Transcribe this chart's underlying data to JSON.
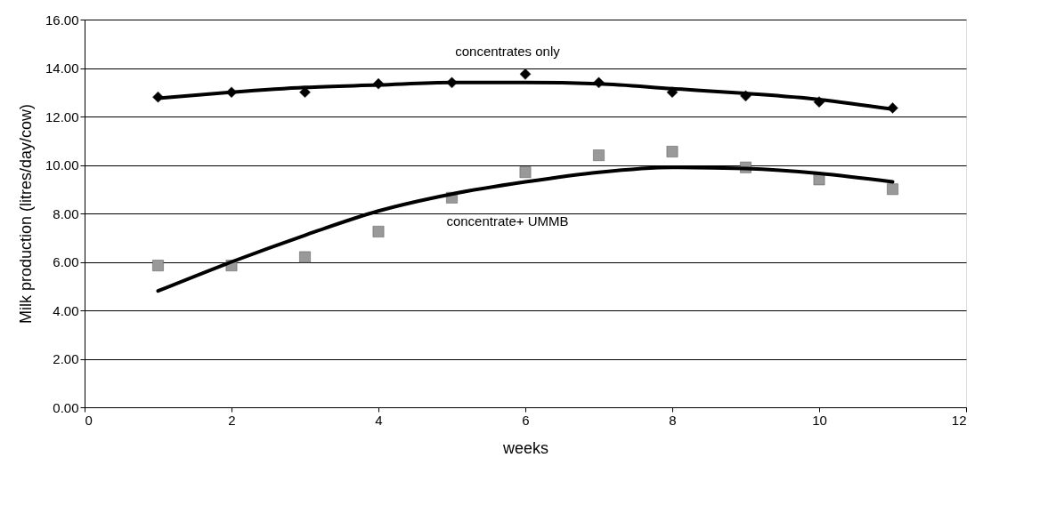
{
  "chart_data": {
    "type": "scatter",
    "xlabel": "weeks",
    "ylabel": "Milk production (litres/day/cow)",
    "xlim": [
      0,
      12
    ],
    "xticks": [
      0,
      2,
      4,
      6,
      8,
      10,
      12
    ],
    "line_style": "solid",
    "ylim": [
      0,
      16
    ],
    "yticks": [
      {
        "value": 0,
        "label": "0.00"
      },
      {
        "value": 2,
        "label": "2.00"
      },
      {
        "value": 4,
        "label": "4.00"
      },
      {
        "value": 6,
        "label": "6.00"
      },
      {
        "value": 8,
        "label": "8.00"
      },
      {
        "value": 10,
        "label": "10.00"
      },
      {
        "value": 12,
        "label": "12.00"
      },
      {
        "value": 14,
        "label": "14.00"
      },
      {
        "value": 16,
        "label": "16.00"
      }
    ],
    "grid": "y",
    "series": [
      {
        "name": "concentrates only",
        "marker": "diamond",
        "color": "#000000",
        "x": [
          1,
          2,
          3,
          4,
          5,
          6,
          7,
          8,
          9,
          10,
          11
        ],
        "values": [
          12.8,
          13.0,
          13.0,
          13.35,
          13.4,
          13.75,
          13.4,
          13.0,
          12.85,
          12.6,
          12.35
        ]
      },
      {
        "name": "concentrate+ UMMB",
        "marker": "square",
        "color": "#999999",
        "x": [
          1,
          2,
          3,
          4,
          5,
          6,
          7,
          8,
          9,
          10,
          11
        ],
        "values": [
          5.85,
          5.85,
          6.2,
          7.25,
          8.65,
          9.7,
          10.4,
          10.55,
          9.9,
          9.4,
          9.0
        ]
      },
      {
        "type": "line",
        "marker": "none",
        "color": "#000000",
        "x": [
          1,
          2,
          3,
          4,
          5,
          6,
          7,
          8,
          9,
          10,
          11
        ],
        "values": [
          12.75,
          13.0,
          13.2,
          13.3,
          13.4,
          13.4,
          13.35,
          13.15,
          12.95,
          12.7,
          12.3
        ]
      },
      {
        "type": "line",
        "marker": "none",
        "color": "#000000",
        "x": [
          1,
          2,
          3,
          4,
          5,
          6,
          7,
          8,
          9,
          10,
          11
        ],
        "values": [
          4.8,
          6.0,
          7.1,
          8.1,
          8.8,
          9.3,
          9.7,
          9.9,
          9.85,
          9.65,
          9.3
        ]
      }
    ]
  }
}
